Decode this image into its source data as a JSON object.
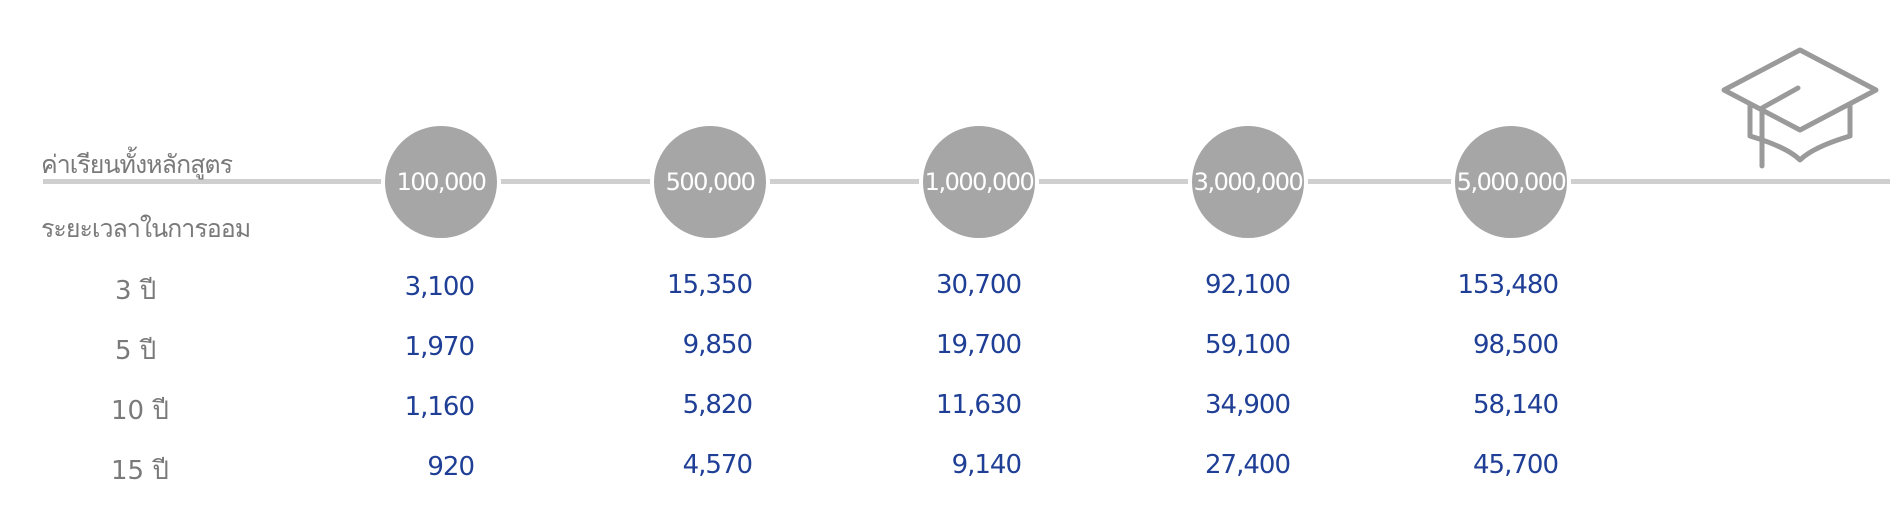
{
  "header": {
    "course_label": "ค่าเรียนทั้งหลักสูตร",
    "period_label": "ระยะเวลาในการออม"
  },
  "chart_data": {
    "type": "table",
    "columns": [
      "100,000",
      "500,000",
      "1,000,000",
      "3,000,000",
      "5,000,000"
    ],
    "rows": [
      {
        "label": "3 ปี",
        "values": [
          "3,100",
          "15,350",
          "30,700",
          "92,100",
          "153,480"
        ]
      },
      {
        "label": "5 ปี",
        "values": [
          "1,970",
          "9,850",
          "19,700",
          "59,100",
          "98,500"
        ]
      },
      {
        "label": "10 ปี",
        "values": [
          "1,160",
          "5,820",
          "11,630",
          "34,900",
          "58,140"
        ]
      },
      {
        "label": "15 ปี",
        "values": [
          "920",
          "4,570",
          "9,140",
          "27,400",
          "45,700"
        ]
      }
    ]
  },
  "colors": {
    "circle": "#a6a6a6",
    "line": "#cfcfcf",
    "value": "#1f3f96",
    "label": "#7a7a7a"
  },
  "icons": {
    "top_right": "graduation-cap-icon"
  }
}
